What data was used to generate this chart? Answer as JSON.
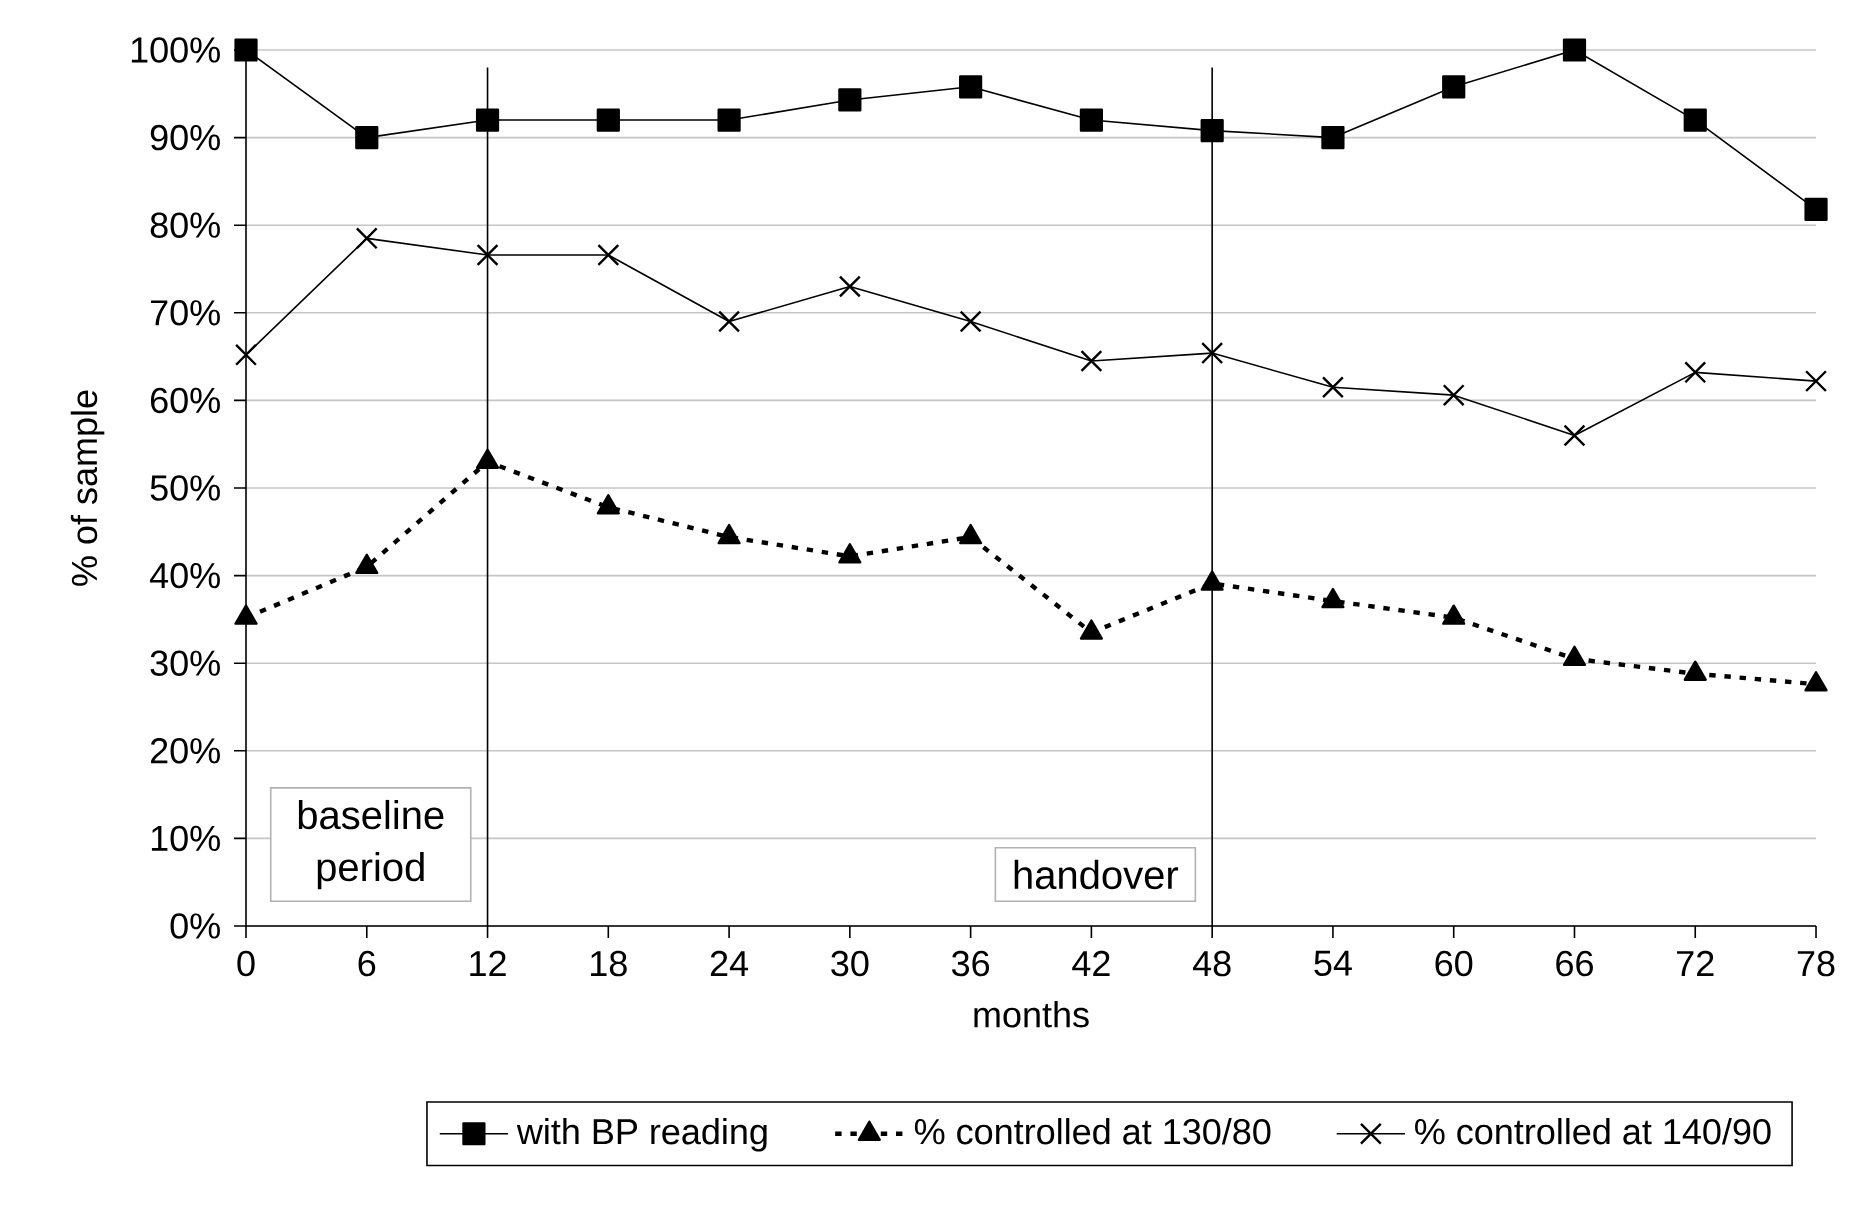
{
  "chart_data": {
    "type": "line",
    "xlabel": "months",
    "ylabel": "% of sample",
    "x": [
      0,
      6,
      12,
      18,
      24,
      30,
      36,
      42,
      48,
      54,
      60,
      66,
      72,
      78
    ],
    "series": [
      {
        "name": "with BP reading",
        "color": "#000000",
        "marker": "square",
        "line_style": "solid",
        "values": [
          100,
          90,
          92,
          92,
          92,
          94.3,
          95.8,
          92,
          90.8,
          90,
          95.8,
          100,
          92,
          81.8
        ]
      },
      {
        "name": "% controlled at 130/80",
        "color": "#000000",
        "marker": "triangle",
        "line_style": "dotted",
        "values": [
          35.2,
          41,
          53,
          47.8,
          44.4,
          42.2,
          44.4,
          33.5,
          39.1,
          37.1,
          35.2,
          30.5,
          28.8,
          27.6
        ]
      },
      {
        "name": "% controlled at 140/90",
        "color": "#000000",
        "marker": "cross",
        "line_style": "solid",
        "values": [
          65.2,
          78.5,
          76.6,
          76.6,
          69,
          73,
          69,
          64.5,
          65.4,
          61.5,
          60.6,
          56,
          63.2,
          62.2
        ]
      }
    ],
    "xlim": [
      0,
      78
    ],
    "xticks": [
      0,
      6,
      12,
      18,
      24,
      30,
      36,
      42,
      48,
      54,
      60,
      66,
      72,
      78
    ],
    "ylim": [
      0,
      100
    ],
    "yticks": [
      {
        "value": 0,
        "label": "0%"
      },
      {
        "value": 10,
        "label": "10%"
      },
      {
        "value": 20,
        "label": "20%"
      },
      {
        "value": 30,
        "label": "30%"
      },
      {
        "value": 40,
        "label": "40%"
      },
      {
        "value": 50,
        "label": "50%"
      },
      {
        "value": 60,
        "label": "60%"
      },
      {
        "value": 70,
        "label": "70%"
      },
      {
        "value": 80,
        "label": "80%"
      },
      {
        "value": 90,
        "label": "90%"
      },
      {
        "value": 100,
        "label": "100%"
      }
    ],
    "ref_lines": [
      {
        "axis": "x",
        "value": 12,
        "label": "baseline period",
        "color": "#000000"
      },
      {
        "axis": "x",
        "value": 48,
        "label": "handover",
        "color": "#000000"
      }
    ],
    "grid": "y",
    "legend": "bottom"
  }
}
